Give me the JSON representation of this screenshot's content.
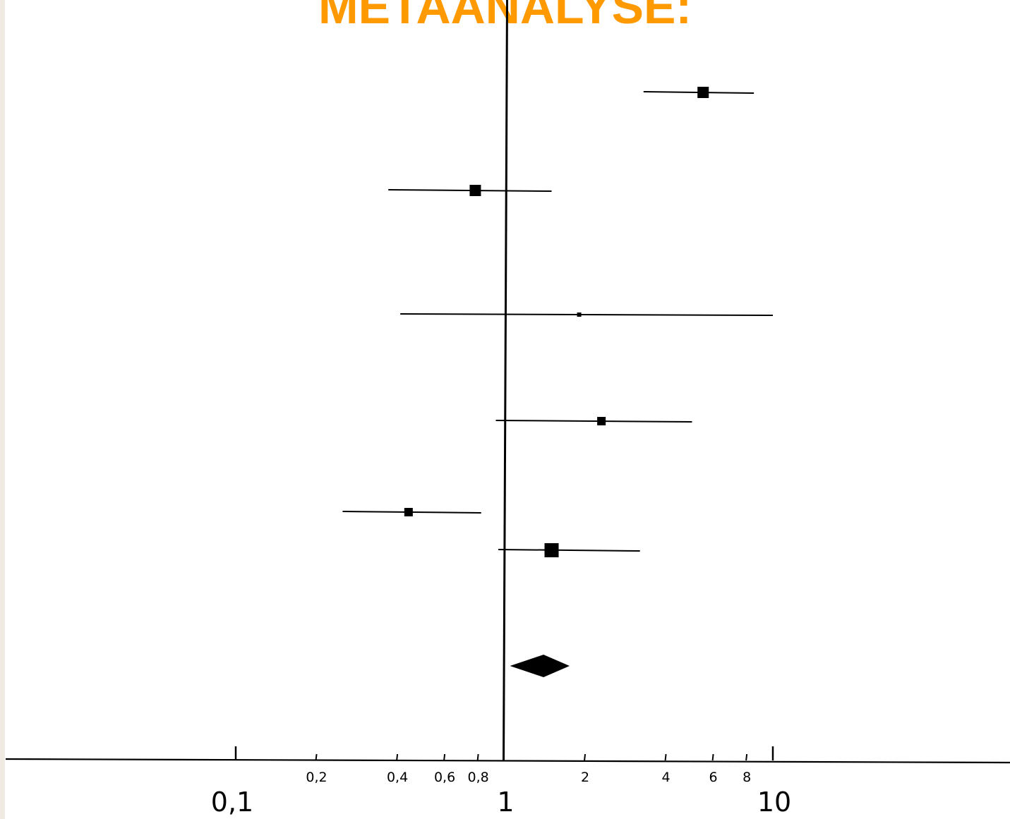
{
  "title": "METAANALYSE:",
  "colors": {
    "title": "#ff9900",
    "ink": "#000000",
    "left_bar": "#efebe3"
  },
  "chart_data": {
    "type": "scatter",
    "subtype": "forest-plot",
    "x_scale": "log",
    "xlim": [
      0.1,
      10
    ],
    "reference_line": 1,
    "grid": false,
    "legend": "none",
    "title": "METAANALYSE:",
    "xlabel": "",
    "ylabel": "",
    "minor_ticks": [
      {
        "value": 0.2,
        "label": "0,2"
      },
      {
        "value": 0.4,
        "label": "0,4"
      },
      {
        "value": 0.6,
        "label": "0,6"
      },
      {
        "value": 0.8,
        "label": "0,8"
      },
      {
        "value": 2,
        "label": "2"
      },
      {
        "value": 4,
        "label": "4"
      },
      {
        "value": 6,
        "label": "6"
      },
      {
        "value": 8,
        "label": "8"
      }
    ],
    "major_ticks": [
      {
        "value": 0.1,
        "label": "0,1"
      },
      {
        "value": 1,
        "label": "1"
      },
      {
        "value": 10,
        "label": "10"
      }
    ],
    "studies": [
      {
        "estimate": 5.5,
        "ci_low": 3.3,
        "ci_high": 8.5,
        "weight": 3
      },
      {
        "estimate": 0.78,
        "ci_low": 0.37,
        "ci_high": 1.5,
        "weight": 3
      },
      {
        "estimate": 1.9,
        "ci_low": 0.41,
        "ci_high": 10.0,
        "weight": 1
      },
      {
        "estimate": 2.3,
        "ci_low": 0.93,
        "ci_high": 5.0,
        "weight": 2
      },
      {
        "estimate": 0.44,
        "ci_low": 0.25,
        "ci_high": 0.82,
        "weight": 2
      },
      {
        "estimate": 1.5,
        "ci_low": 0.95,
        "ci_high": 3.2,
        "weight": 4
      }
    ],
    "pooled": {
      "estimate": 1.4,
      "ci_low": 1.05,
      "ci_high": 1.75
    }
  }
}
